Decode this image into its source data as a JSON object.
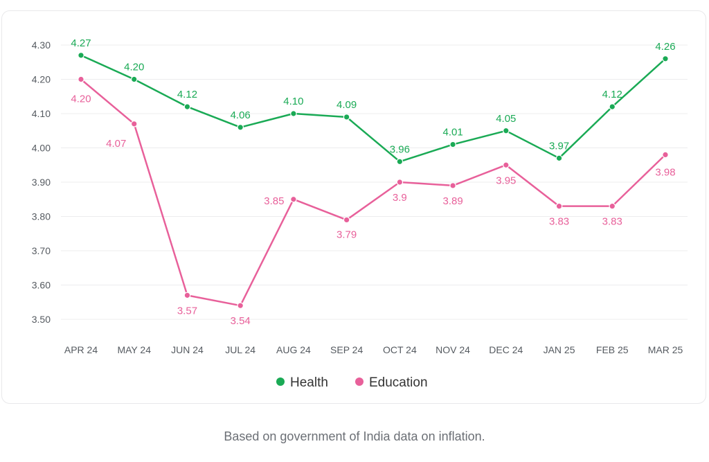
{
  "chart_data": {
    "type": "line",
    "categories": [
      "APR 24",
      "MAY 24",
      "JUN 24",
      "JUL 24",
      "AUG 24",
      "SEP 24",
      "OCT 24",
      "NOV 24",
      "DEC 24",
      "JAN 25",
      "FEB 25",
      "MAR 25"
    ],
    "yticks": [
      "3.50",
      "3.60",
      "3.70",
      "3.80",
      "3.90",
      "4.00",
      "4.10",
      "4.20",
      "4.30"
    ],
    "ylim": [
      3.45,
      4.33
    ],
    "grid": true,
    "legend": "bottom-center",
    "series": [
      {
        "name": "Health",
        "color": "#1aaa55",
        "values": [
          4.27,
          4.2,
          4.12,
          4.06,
          4.1,
          4.09,
          3.96,
          4.01,
          4.05,
          3.97,
          4.12,
          4.26
        ],
        "labels": [
          "4.27",
          "4.20",
          "4.12",
          "4.06",
          "4.10",
          "4.09",
          "3.96",
          "4.01",
          "4.05",
          "3.97",
          "4.12",
          "4.26"
        ]
      },
      {
        "name": "Education",
        "color": "#e8609a",
        "values": [
          4.2,
          4.07,
          3.57,
          3.54,
          3.85,
          3.79,
          3.9,
          3.89,
          3.95,
          3.83,
          3.83,
          3.98
        ],
        "labels": [
          "4.20",
          "4.07",
          "3.57",
          "3.54",
          "3.85",
          "3.79",
          "3.9",
          "3.89",
          "3.95",
          "3.83",
          "3.83",
          "3.98"
        ]
      }
    ]
  },
  "caption": "Based on government of India data on inflation."
}
